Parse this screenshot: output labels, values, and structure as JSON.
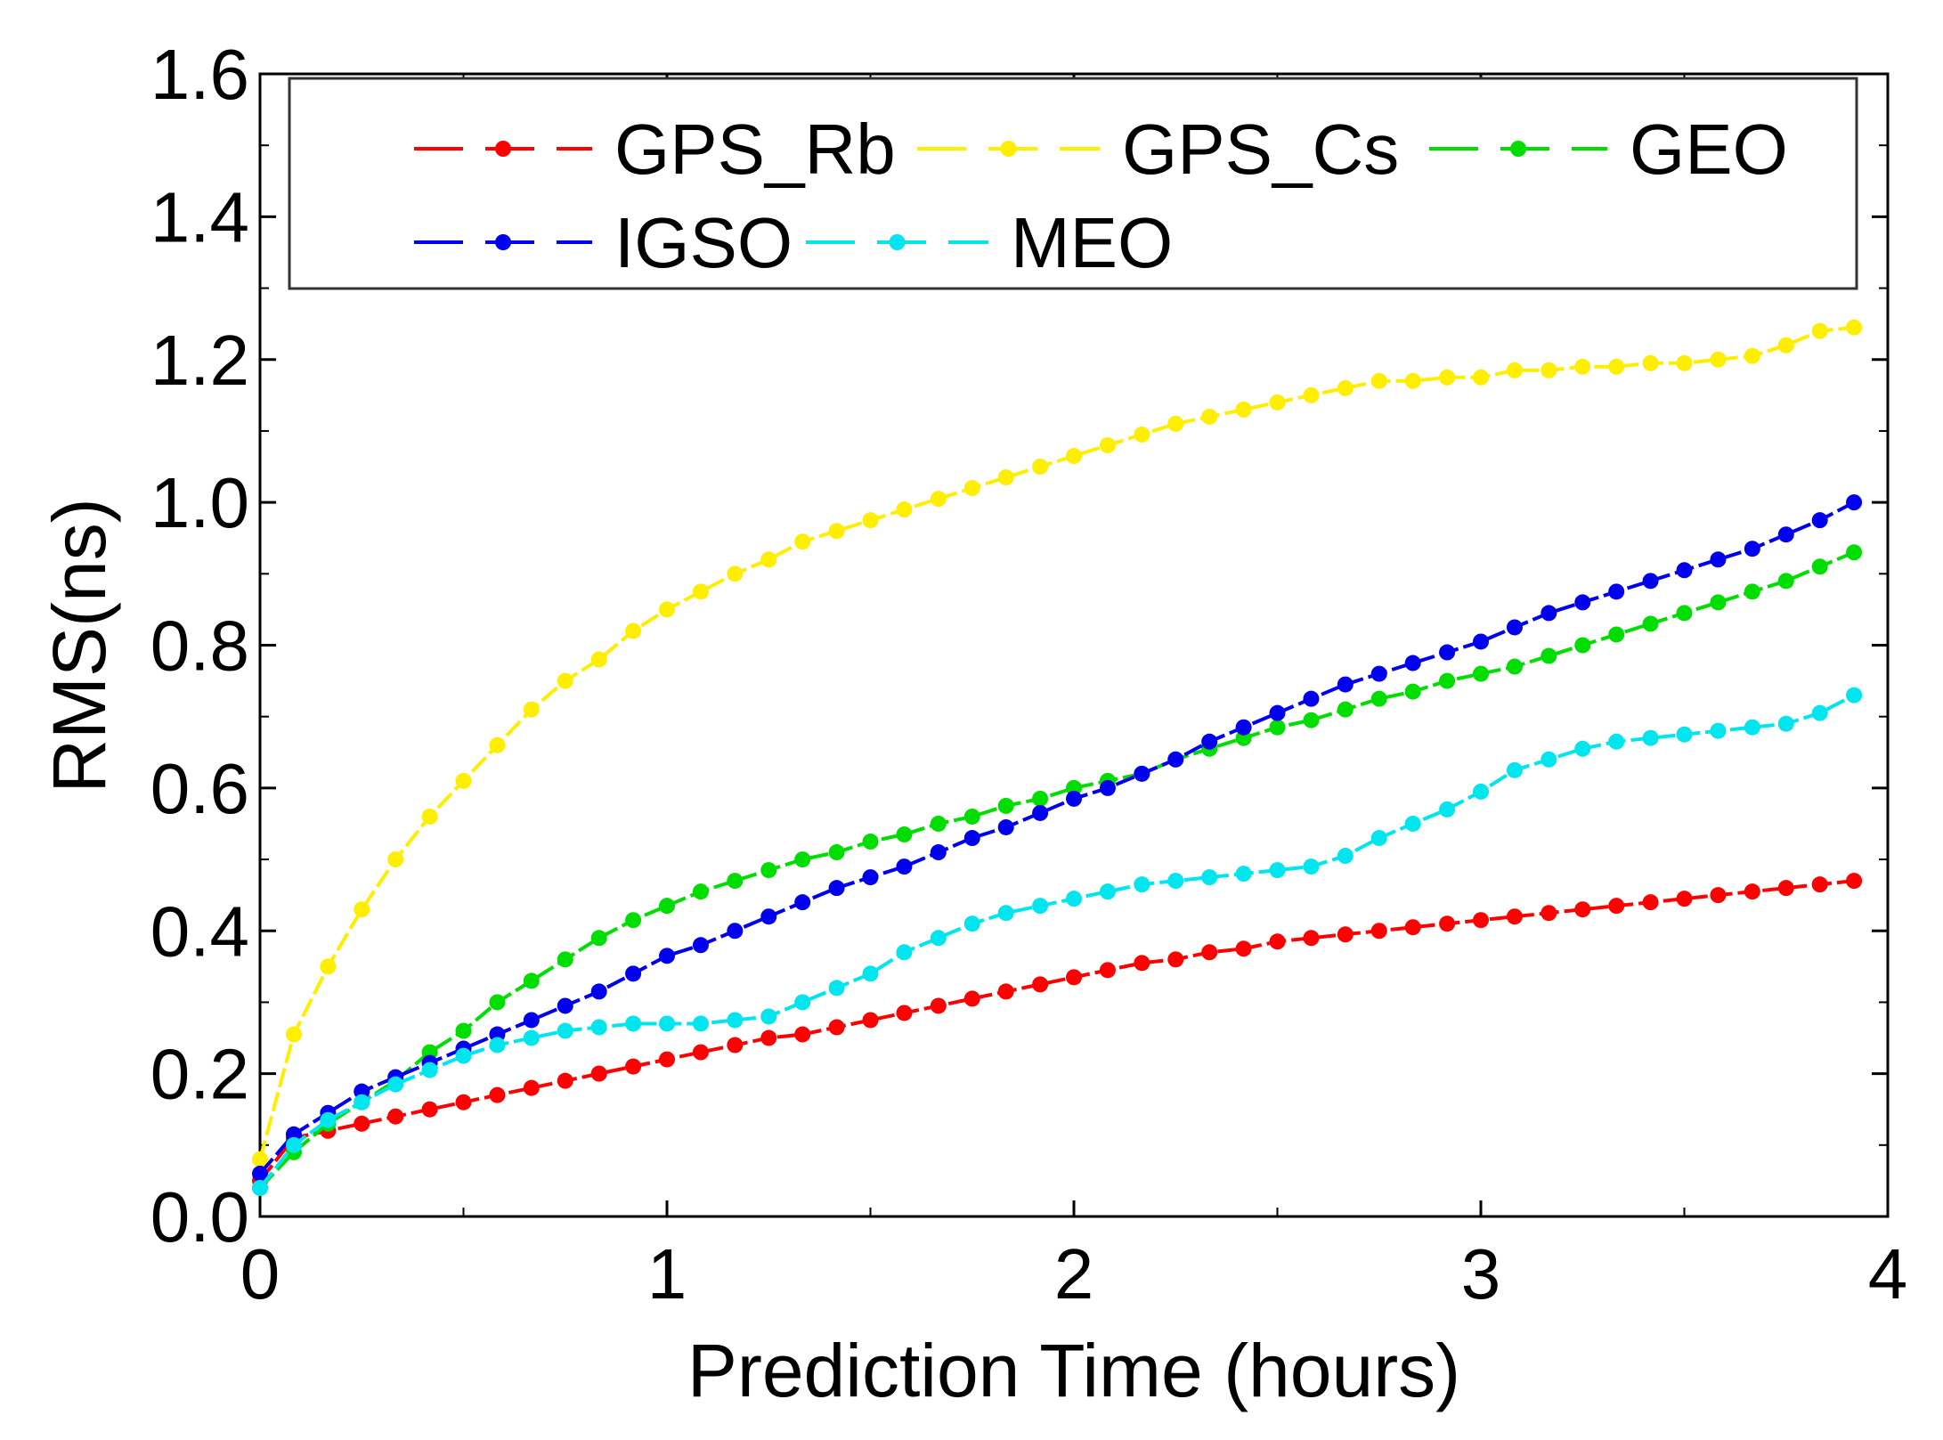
{
  "chart_data": {
    "type": "line",
    "title": "",
    "xlabel": "Prediction Time (hours)",
    "ylabel": "RMS(ns)",
    "xlim": [
      0,
      4
    ],
    "ylim": [
      0,
      1.6
    ],
    "xticks": [
      0,
      1,
      2,
      3,
      4
    ],
    "yticks": [
      0.0,
      0.2,
      0.4,
      0.6,
      0.8,
      1.0,
      1.2,
      1.4,
      1.6
    ],
    "xtick_labels": [
      "0",
      "1",
      "2",
      "3",
      "4"
    ],
    "ytick_labels": [
      "0.0",
      "0.2",
      "0.4",
      "0.6",
      "0.8",
      "1.0",
      "1.2",
      "1.4",
      "1.6"
    ],
    "grid": false,
    "legend_position": "top",
    "x": [
      0,
      0.083,
      0.167,
      0.25,
      0.333,
      0.417,
      0.5,
      0.583,
      0.667,
      0.75,
      0.833,
      0.917,
      1.0,
      1.083,
      1.167,
      1.25,
      1.333,
      1.417,
      1.5,
      1.583,
      1.667,
      1.75,
      1.833,
      1.917,
      2.0,
      2.083,
      2.167,
      2.25,
      2.333,
      2.417,
      2.5,
      2.583,
      2.667,
      2.75,
      2.833,
      2.917,
      3.0,
      3.083,
      3.167,
      3.25,
      3.333,
      3.417,
      3.5,
      3.583,
      3.667,
      3.75,
      3.833,
      3.917
    ],
    "series": [
      {
        "name": "GPS_Rb",
        "color": "#ff0000",
        "values": [
          0.05,
          0.11,
          0.12,
          0.13,
          0.14,
          0.15,
          0.16,
          0.17,
          0.18,
          0.19,
          0.2,
          0.21,
          0.22,
          0.23,
          0.24,
          0.25,
          0.255,
          0.265,
          0.275,
          0.285,
          0.295,
          0.305,
          0.315,
          0.325,
          0.335,
          0.345,
          0.355,
          0.36,
          0.37,
          0.375,
          0.385,
          0.39,
          0.395,
          0.4,
          0.405,
          0.41,
          0.415,
          0.42,
          0.425,
          0.43,
          0.435,
          0.44,
          0.445,
          0.45,
          0.455,
          0.46,
          0.465,
          0.47
        ]
      },
      {
        "name": "GPS_Cs",
        "color": "#ffee00",
        "values": [
          0.08,
          0.255,
          0.35,
          0.43,
          0.5,
          0.56,
          0.61,
          0.66,
          0.71,
          0.75,
          0.78,
          0.82,
          0.85,
          0.875,
          0.9,
          0.92,
          0.945,
          0.96,
          0.975,
          0.99,
          1.005,
          1.02,
          1.035,
          1.05,
          1.065,
          1.08,
          1.095,
          1.11,
          1.12,
          1.13,
          1.14,
          1.15,
          1.16,
          1.17,
          1.17,
          1.175,
          1.175,
          1.185,
          1.185,
          1.19,
          1.19,
          1.195,
          1.195,
          1.2,
          1.205,
          1.22,
          1.24,
          1.245
        ]
      },
      {
        "name": "GEO",
        "color": "#00dd00",
        "values": [
          0.04,
          0.09,
          0.13,
          0.16,
          0.19,
          0.23,
          0.26,
          0.3,
          0.33,
          0.36,
          0.39,
          0.415,
          0.435,
          0.455,
          0.47,
          0.485,
          0.5,
          0.51,
          0.525,
          0.535,
          0.55,
          0.56,
          0.575,
          0.585,
          0.6,
          0.61,
          0.62,
          0.64,
          0.655,
          0.67,
          0.685,
          0.695,
          0.71,
          0.725,
          0.735,
          0.75,
          0.76,
          0.77,
          0.785,
          0.8,
          0.815,
          0.83,
          0.845,
          0.86,
          0.875,
          0.89,
          0.91,
          0.93
        ]
      },
      {
        "name": "IGSO",
        "color": "#0000ee",
        "values": [
          0.06,
          0.115,
          0.145,
          0.175,
          0.195,
          0.215,
          0.235,
          0.255,
          0.275,
          0.295,
          0.315,
          0.34,
          0.365,
          0.38,
          0.4,
          0.42,
          0.44,
          0.46,
          0.475,
          0.49,
          0.51,
          0.53,
          0.545,
          0.565,
          0.585,
          0.6,
          0.62,
          0.64,
          0.665,
          0.685,
          0.705,
          0.725,
          0.745,
          0.76,
          0.775,
          0.79,
          0.805,
          0.825,
          0.845,
          0.86,
          0.875,
          0.89,
          0.905,
          0.92,
          0.935,
          0.955,
          0.975,
          1.0
        ]
      },
      {
        "name": "MEO",
        "color": "#00e5ee",
        "values": [
          0.04,
          0.1,
          0.135,
          0.16,
          0.185,
          0.205,
          0.225,
          0.24,
          0.25,
          0.26,
          0.265,
          0.27,
          0.27,
          0.27,
          0.275,
          0.28,
          0.3,
          0.32,
          0.34,
          0.37,
          0.39,
          0.41,
          0.425,
          0.435,
          0.445,
          0.455,
          0.465,
          0.47,
          0.475,
          0.48,
          0.485,
          0.49,
          0.505,
          0.53,
          0.55,
          0.57,
          0.595,
          0.625,
          0.64,
          0.655,
          0.665,
          0.67,
          0.675,
          0.68,
          0.685,
          0.69,
          0.705,
          0.73
        ]
      }
    ],
    "legend": [
      {
        "label": "GPS_Rb",
        "color": "#ff0000"
      },
      {
        "label": "GPS_Cs",
        "color": "#ffee00"
      },
      {
        "label": "GEO",
        "color": "#00dd00"
      },
      {
        "label": "IGSO",
        "color": "#0000ee"
      },
      {
        "label": "MEO",
        "color": "#00e5ee"
      }
    ]
  }
}
